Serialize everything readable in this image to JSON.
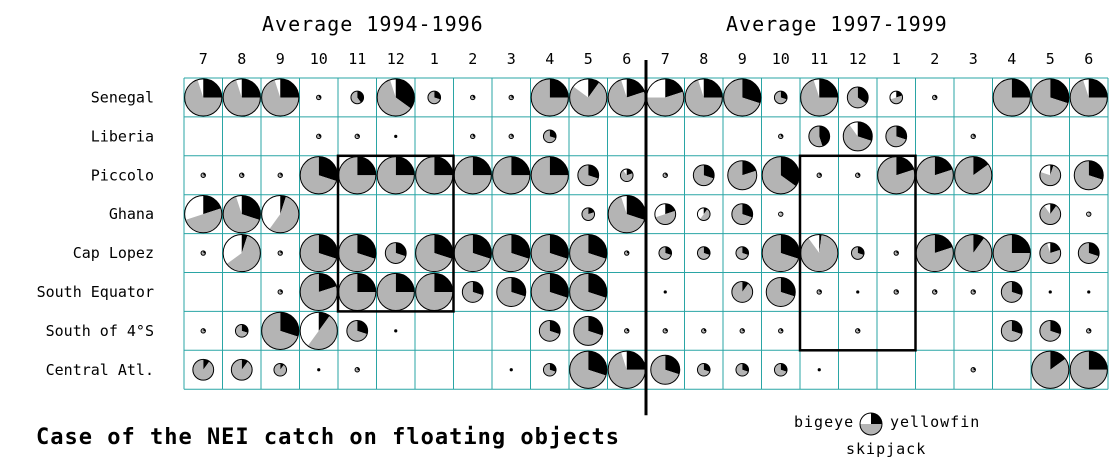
{
  "chart_data": {
    "type": "pie-grid",
    "panels": [
      {
        "title": "Average 1994-1996",
        "months": [
          "7",
          "8",
          "9",
          "10",
          "11",
          "12",
          "1",
          "2",
          "3",
          "4",
          "5",
          "6"
        ]
      },
      {
        "title": "Average 1997-1999",
        "months": [
          "7",
          "8",
          "9",
          "10",
          "11",
          "12",
          "1",
          "2",
          "3",
          "4",
          "5",
          "6"
        ]
      }
    ],
    "rows": [
      "Senegal",
      "Liberia",
      "Piccolo",
      "Ghana",
      "Cap Lopez",
      "South Equator",
      "South of 4°S",
      "Central Atl."
    ],
    "series": [
      {
        "name": "bigeye",
        "color": "#ffffff"
      },
      {
        "name": "yellowfin",
        "color": "#000000"
      },
      {
        "name": "skipjack",
        "color": "#b4b4b4"
      }
    ],
    "size_scale": [
      1,
      2,
      3,
      4,
      5
    ],
    "cells": [
      [
        [
          5,
          0.05,
          0.25
        ],
        [
          5,
          0.05,
          0.25
        ],
        [
          5,
          0.05,
          0.25
        ],
        [
          1,
          0,
          0.3
        ],
        [
          2,
          0,
          0.4
        ],
        [
          5,
          0.05,
          0.35
        ],
        [
          2,
          0,
          0.3
        ],
        [
          1,
          0,
          0.3
        ],
        [
          1,
          0,
          0.3
        ],
        [
          5,
          0,
          0.25
        ],
        [
          5,
          0.15,
          0.1
        ],
        [
          5,
          0.05,
          0.2
        ],
        [
          5,
          0.25,
          0.2
        ],
        [
          5,
          0.05,
          0.25
        ],
        [
          5,
          0,
          0.3
        ],
        [
          2,
          0,
          0.3
        ],
        [
          5,
          0.05,
          0.25
        ],
        [
          3,
          0,
          0.35
        ],
        [
          2,
          0.3,
          0.2
        ],
        [
          1,
          0,
          0.3
        ],
        [
          0,
          0,
          0
        ],
        [
          5,
          0,
          0.25
        ],
        [
          5,
          0,
          0.3
        ],
        [
          5,
          0.05,
          0.25
        ]
      ],
      [
        [
          0,
          0,
          0
        ],
        [
          0,
          0,
          0
        ],
        [
          0,
          0,
          0
        ],
        [
          1,
          0,
          0.3
        ],
        [
          1,
          0,
          0.3
        ],
        [
          0.5,
          0,
          0.3
        ],
        [
          0,
          0,
          0
        ],
        [
          1,
          0,
          0.3
        ],
        [
          1,
          0,
          0.3
        ],
        [
          2,
          0,
          0.3
        ],
        [
          0,
          0,
          0
        ],
        [
          0,
          0,
          0
        ],
        [
          0,
          0,
          0
        ],
        [
          0,
          0,
          0
        ],
        [
          0,
          0,
          0
        ],
        [
          1,
          0,
          0.3
        ],
        [
          3,
          0,
          0.45
        ],
        [
          4,
          0.1,
          0.3
        ],
        [
          3,
          0,
          0.3
        ],
        [
          0,
          0,
          0
        ],
        [
          1,
          0,
          0.3
        ],
        [
          0,
          0,
          0
        ],
        [
          0,
          0,
          0
        ],
        [
          0,
          0,
          0
        ]
      ],
      [
        [
          1,
          0,
          0.3
        ],
        [
          1,
          0,
          0.3
        ],
        [
          1,
          0,
          0.3
        ],
        [
          5,
          0,
          0.3
        ],
        [
          5,
          0,
          0.25
        ],
        [
          5,
          0,
          0.25
        ],
        [
          5,
          0,
          0.25
        ],
        [
          5,
          0,
          0.25
        ],
        [
          5,
          0,
          0.25
        ],
        [
          5,
          0,
          0.25
        ],
        [
          3,
          0,
          0.3
        ],
        [
          2,
          0.1,
          0.2
        ],
        [
          1,
          0,
          0.3
        ],
        [
          3,
          0,
          0.3
        ],
        [
          4,
          0,
          0.2
        ],
        [
          5,
          0,
          0.35
        ],
        [
          1,
          0,
          0.3
        ],
        [
          1,
          0,
          0.3
        ],
        [
          5,
          0,
          0.2
        ],
        [
          5,
          0,
          0.2
        ],
        [
          5,
          0,
          0.15
        ],
        [
          0,
          0,
          0
        ],
        [
          3,
          0.2,
          0.05
        ],
        [
          4,
          0,
          0.3
        ]
      ],
      [
        [
          5,
          0.3,
          0.2
        ],
        [
          5,
          0.05,
          0.3
        ],
        [
          5,
          0.4,
          0.05
        ],
        [
          0,
          0,
          0
        ],
        [
          0,
          0,
          0
        ],
        [
          0,
          0,
          0
        ],
        [
          0,
          0,
          0
        ],
        [
          0,
          0,
          0
        ],
        [
          0,
          0,
          0
        ],
        [
          0,
          0,
          0
        ],
        [
          2,
          0,
          0.2
        ],
        [
          5,
          0.05,
          0.3
        ],
        [
          3,
          0.3,
          0.2
        ],
        [
          2,
          0.4,
          0.1
        ],
        [
          3,
          0,
          0.3
        ],
        [
          1,
          0.3,
          0.1
        ],
        [
          0,
          0,
          0
        ],
        [
          0,
          0,
          0
        ],
        [
          0,
          0,
          0
        ],
        [
          0,
          0,
          0
        ],
        [
          0,
          0,
          0
        ],
        [
          0,
          0,
          0
        ],
        [
          3,
          0.1,
          0.1
        ],
        [
          1,
          0.3,
          0.1
        ]
      ],
      [
        [
          1,
          0,
          0.3
        ],
        [
          5,
          0.35,
          0.05
        ],
        [
          1,
          0,
          0.3
        ],
        [
          5,
          0,
          0.3
        ],
        [
          5,
          0,
          0.3
        ],
        [
          3,
          0,
          0.3
        ],
        [
          5,
          0,
          0.3
        ],
        [
          5,
          0,
          0.3
        ],
        [
          5,
          0,
          0.3
        ],
        [
          5,
          0,
          0.3
        ],
        [
          5,
          0,
          0.3
        ],
        [
          1,
          0,
          0.3
        ],
        [
          2,
          0,
          0.3
        ],
        [
          2,
          0,
          0.3
        ],
        [
          2,
          0,
          0.3
        ],
        [
          5,
          0,
          0.3
        ],
        [
          5,
          0.1,
          0.02
        ],
        [
          2,
          0,
          0.3
        ],
        [
          1,
          0,
          0.3
        ],
        [
          5,
          0,
          0.2
        ],
        [
          5,
          0,
          0.1
        ],
        [
          5,
          0,
          0.25
        ],
        [
          3,
          0.05,
          0.2
        ],
        [
          3,
          0,
          0.3
        ]
      ],
      [
        [
          0,
          0,
          0
        ],
        [
          0,
          0,
          0
        ],
        [
          1,
          0,
          0.3
        ],
        [
          5,
          0,
          0.2
        ],
        [
          5,
          0,
          0.25
        ],
        [
          5,
          0,
          0.25
        ],
        [
          5,
          0,
          0.25
        ],
        [
          3,
          0,
          0.3
        ],
        [
          4,
          0,
          0.3
        ],
        [
          5,
          0,
          0.3
        ],
        [
          5,
          0,
          0.3
        ],
        [
          0,
          0,
          0
        ],
        [
          0.5,
          0,
          0.3
        ],
        [
          0,
          0,
          0
        ],
        [
          3,
          0,
          0.1
        ],
        [
          4,
          0,
          0.3
        ],
        [
          1,
          0,
          0.3
        ],
        [
          0.5,
          0,
          0.3
        ],
        [
          1,
          0,
          0.3
        ],
        [
          1,
          0,
          0.3
        ],
        [
          1,
          0,
          0.3
        ],
        [
          3,
          0,
          0.3
        ],
        [
          0.5,
          0,
          0.3
        ],
        [
          0.5,
          0,
          0.3
        ]
      ],
      [
        [
          1,
          0,
          0.3
        ],
        [
          2,
          0,
          0.3
        ],
        [
          5,
          0,
          0.3
        ],
        [
          5,
          0.4,
          0.1
        ],
        [
          3,
          0,
          0.3
        ],
        [
          0.5,
          0,
          0.3
        ],
        [
          0,
          0,
          0
        ],
        [
          0,
          0,
          0
        ],
        [
          0,
          0,
          0
        ],
        [
          3,
          0,
          0.3
        ],
        [
          4,
          0,
          0.3
        ],
        [
          1,
          0,
          0.3
        ],
        [
          1,
          0,
          0.3
        ],
        [
          1,
          0,
          0.3
        ],
        [
          1,
          0,
          0.3
        ],
        [
          1,
          0,
          0.3
        ],
        [
          0,
          0,
          0
        ],
        [
          1,
          0,
          0.3
        ],
        [
          0,
          0,
          0
        ],
        [
          0,
          0,
          0
        ],
        [
          0,
          0,
          0
        ],
        [
          3,
          0,
          0.3
        ],
        [
          3,
          0,
          0.3
        ],
        [
          1,
          0,
          0.3
        ]
      ],
      [
        [
          3,
          0,
          0.1
        ],
        [
          3,
          0,
          0.1
        ],
        [
          2,
          0,
          0.1
        ],
        [
          0.5,
          0,
          0.3
        ],
        [
          1,
          0,
          0.3
        ],
        [
          0,
          0,
          0
        ],
        [
          0,
          0,
          0
        ],
        [
          0,
          0,
          0
        ],
        [
          0.5,
          0,
          0.3
        ],
        [
          2,
          0,
          0.3
        ],
        [
          5,
          0,
          0.3
        ],
        [
          5,
          0.05,
          0.25
        ],
        [
          4,
          0,
          0.3
        ],
        [
          2,
          0,
          0.3
        ],
        [
          2,
          0,
          0.3
        ],
        [
          2,
          0,
          0.3
        ],
        [
          0.5,
          0,
          0.3
        ],
        [
          0,
          0,
          0
        ],
        [
          0,
          0,
          0
        ],
        [
          0,
          0,
          0
        ],
        [
          1,
          0,
          0.3
        ],
        [
          0,
          0,
          0
        ],
        [
          5,
          0,
          0.15
        ],
        [
          5,
          0,
          0.25
        ]
      ]
    ],
    "boxes": [
      {
        "panel": 0,
        "col_start": 4,
        "col_end": 6,
        "row_start": 2,
        "row_end": 5
      },
      {
        "panel": 1,
        "col_start": 4,
        "col_end": 6,
        "row_start": 2,
        "row_end": 6
      }
    ]
  },
  "text": {
    "caption": "Case of the NEI catch on floating objects",
    "legend_left": "bigeye",
    "legend_right": "yellowfin",
    "legend_bottom": "skipjack"
  }
}
